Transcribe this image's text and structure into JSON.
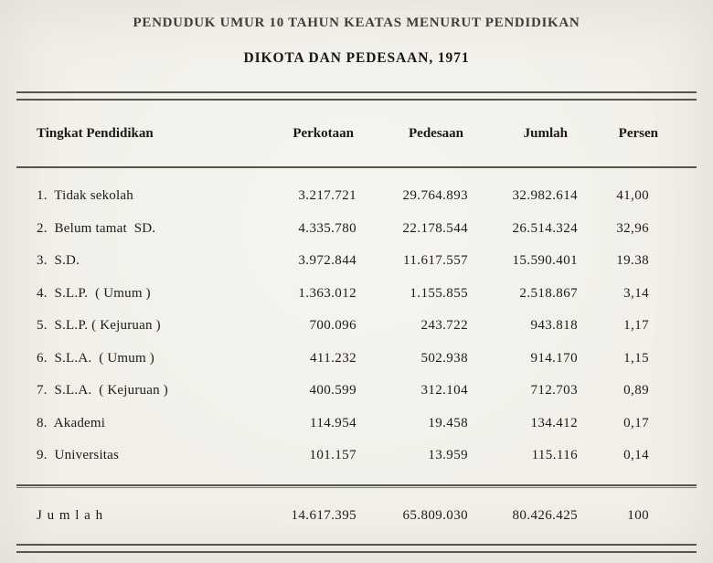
{
  "page": {
    "title_line1": "PENDUDUK UMUR 10 TAHUN KEATAS MENURUT PENDIDIKAN",
    "title_line2": "DIKOTA DAN PEDESAAN, 1971"
  },
  "colors": {
    "background": "#f1efe8",
    "text": "#1d1b16",
    "rule": "#56554c"
  },
  "table": {
    "columns": [
      "Tingkat Pendidikan",
      "Perkotaan",
      "Pedesaan",
      "Jumlah",
      "Persen"
    ],
    "rows": [
      {
        "label": "1.  Tidak sekolah",
        "perkotaan": "3.217.721",
        "pedesaan": "29.764.893",
        "jumlah": "32.982.614",
        "persen": "41,00"
      },
      {
        "label": "2.  Belum tamat  SD.",
        "perkotaan": "4.335.780",
        "pedesaan": "22.178.544",
        "jumlah": "26.514.324",
        "persen": "32,96"
      },
      {
        "label": "3.  S.D.",
        "perkotaan": "3.972.844",
        "pedesaan": "11.617.557",
        "jumlah": "15.590.401",
        "persen": "19.38"
      },
      {
        "label": "4.  S.L.P.  ( Umum )",
        "perkotaan": "1.363.012",
        "pedesaan": "1.155.855",
        "jumlah": "2.518.867",
        "persen": "3,14"
      },
      {
        "label": "5.  S.L.P. ( Kejuruan )",
        "perkotaan": "700.096",
        "pedesaan": "243.722",
        "jumlah": "943.818",
        "persen": "1,17"
      },
      {
        "label": "6.  S.L.A.  ( Umum )",
        "perkotaan": "411.232",
        "pedesaan": "502.938",
        "jumlah": "914.170",
        "persen": "1,15"
      },
      {
        "label": "7.  S.L.A.  ( Kejuruan )",
        "perkotaan": "400.599",
        "pedesaan": "312.104",
        "jumlah": "712.703",
        "persen": "0,89"
      },
      {
        "label": "8.  Akademi",
        "perkotaan": "114.954",
        "pedesaan": "19.458",
        "jumlah": "134.412",
        "persen": "0,17"
      },
      {
        "label": "9.  Universitas",
        "perkotaan": "101.157",
        "pedesaan": "13.959",
        "jumlah": "115.116",
        "persen": "0,14"
      }
    ],
    "footer": {
      "label": "J u m l a h",
      "perkotaan": "14.617.395",
      "pedesaan": "65.809.030",
      "jumlah": "80.426.425",
      "persen": "100"
    }
  }
}
